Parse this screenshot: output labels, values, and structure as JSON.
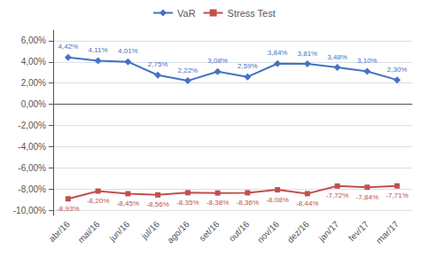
{
  "chart_data": {
    "type": "line",
    "categories": [
      "abr/16",
      "mai/16",
      "jun/16",
      "jul/16",
      "ago/16",
      "set/16",
      "out/16",
      "nov/16",
      "dez/16",
      "jan/17",
      "fev/17",
      "mar/17"
    ],
    "series": [
      {
        "name": "VaR",
        "color": "#4472C4",
        "marker": "diamond",
        "values": [
          4.42,
          4.11,
          4.01,
          2.75,
          2.22,
          3.08,
          2.59,
          3.84,
          3.81,
          3.48,
          3.1,
          2.3
        ],
        "value_labels": [
          "4,42%",
          "4,11%",
          "4,01%",
          "2,75%",
          "2,22%",
          "3,08%",
          "2,59%",
          "3,84%",
          "3,81%",
          "3,48%",
          "3,10%",
          "2,30%"
        ]
      },
      {
        "name": "Stress Test",
        "color": "#C0504D",
        "marker": "square",
        "values": [
          -8.93,
          -8.2,
          -8.45,
          -8.56,
          -8.35,
          -8.38,
          -8.36,
          -8.08,
          -8.44,
          -7.72,
          -7.84,
          -7.71
        ],
        "value_labels": [
          "-8,93%",
          "-8,20%",
          "-8,45%",
          "-8,56%",
          "-8,35%",
          "-8,38%",
          "-8,36%",
          "-8,08%",
          "-8,44%",
          "-7,72%",
          "-7,84%",
          "-7,71%"
        ]
      }
    ],
    "ylim": [
      -10.5,
      7.0
    ],
    "yticks": [
      {
        "value": -10.0,
        "label": "-10,00%"
      },
      {
        "value": -8.0,
        "label": "-8,00%"
      },
      {
        "value": -6.0,
        "label": "-6,00%"
      },
      {
        "value": -4.0,
        "label": "-4,00%"
      },
      {
        "value": -2.0,
        "label": "-2,00%"
      },
      {
        "value": 0.0,
        "label": "0,00%"
      },
      {
        "value": 2.0,
        "label": "2,00%"
      },
      {
        "value": 4.0,
        "label": "4,00%"
      },
      {
        "value": 6.0,
        "label": "6,00%"
      }
    ],
    "grid": true,
    "legend": "top",
    "data_labels": true
  }
}
